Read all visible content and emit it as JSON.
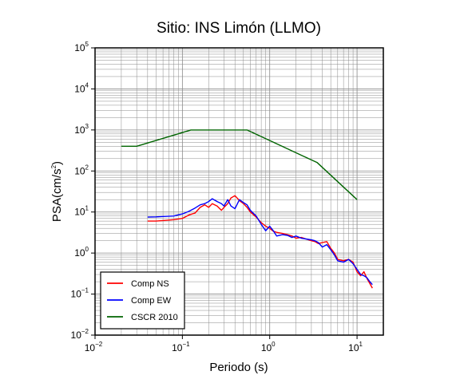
{
  "chart_data": {
    "type": "line",
    "title": "Sitio: INS Limón (LLMO)",
    "xlabel": "Periodo (s)",
    "ylabel_base": "PSA(cm/s",
    "ylabel_sup": "2",
    "ylabel_end": ")",
    "x_scale": "log",
    "y_scale": "log",
    "xlim": [
      0.01,
      20
    ],
    "ylim": [
      0.01,
      100000
    ],
    "grid": true,
    "legend_position": "bottom-left",
    "x_ticks": [
      {
        "base": "10",
        "exp": "−2",
        "value": 0.01
      },
      {
        "base": "10",
        "exp": "−1",
        "value": 0.1
      },
      {
        "base": "10",
        "exp": "0",
        "value": 1
      },
      {
        "base": "10",
        "exp": "1",
        "value": 10
      }
    ],
    "y_ticks": [
      {
        "base": "10",
        "exp": "−2",
        "value": 0.01
      },
      {
        "base": "10",
        "exp": "−1",
        "value": 0.1
      },
      {
        "base": "10",
        "exp": "0",
        "value": 1
      },
      {
        "base": "10",
        "exp": "1",
        "value": 10
      },
      {
        "base": "10",
        "exp": "2",
        "value": 100
      },
      {
        "base": "10",
        "exp": "3",
        "value": 1000
      },
      {
        "base": "10",
        "exp": "4",
        "value": 10000
      },
      {
        "base": "10",
        "exp": "5",
        "value": 100000
      }
    ],
    "series": [
      {
        "name": "Comp NS",
        "color": "#ff0000",
        "points": [
          [
            0.04,
            6.0
          ],
          [
            0.05,
            6.0
          ],
          [
            0.06,
            6.2
          ],
          [
            0.08,
            6.5
          ],
          [
            0.1,
            7.0
          ],
          [
            0.12,
            8.5
          ],
          [
            0.14,
            9.5
          ],
          [
            0.16,
            13.0
          ],
          [
            0.18,
            15.0
          ],
          [
            0.2,
            13.0
          ],
          [
            0.22,
            16.0
          ],
          [
            0.25,
            14.0
          ],
          [
            0.28,
            11.0
          ],
          [
            0.3,
            13.0
          ],
          [
            0.33,
            16.0
          ],
          [
            0.36,
            22.0
          ],
          [
            0.4,
            25.0
          ],
          [
            0.45,
            19.0
          ],
          [
            0.5,
            16.0
          ],
          [
            0.55,
            13.0
          ],
          [
            0.6,
            10.0
          ],
          [
            0.7,
            7.5
          ],
          [
            0.8,
            5.5
          ],
          [
            0.9,
            4.5
          ],
          [
            1.0,
            4.0
          ],
          [
            1.1,
            3.4
          ],
          [
            1.2,
            3.2
          ],
          [
            1.4,
            3.0
          ],
          [
            1.6,
            2.8
          ],
          [
            1.8,
            2.6
          ],
          [
            2.0,
            2.3
          ],
          [
            2.3,
            2.4
          ],
          [
            2.6,
            2.2
          ],
          [
            3.0,
            2.0
          ],
          [
            3.3,
            1.9
          ],
          [
            3.6,
            1.7
          ],
          [
            4.0,
            1.8
          ],
          [
            4.5,
            1.9
          ],
          [
            5.0,
            1.3
          ],
          [
            5.5,
            1.0
          ],
          [
            6.0,
            0.7
          ],
          [
            7.0,
            0.65
          ],
          [
            8.0,
            0.7
          ],
          [
            9.0,
            0.6
          ],
          [
            10.0,
            0.35
          ],
          [
            11.0,
            0.28
          ],
          [
            12.0,
            0.35
          ],
          [
            13.0,
            0.24
          ],
          [
            14.0,
            0.18
          ],
          [
            15.0,
            0.14
          ]
        ]
      },
      {
        "name": "Comp EW",
        "color": "#0000ff",
        "points": [
          [
            0.04,
            7.5
          ],
          [
            0.05,
            7.6
          ],
          [
            0.06,
            7.8
          ],
          [
            0.08,
            8.0
          ],
          [
            0.1,
            9.0
          ],
          [
            0.12,
            10.5
          ],
          [
            0.14,
            12.5
          ],
          [
            0.16,
            15.0
          ],
          [
            0.18,
            16.0
          ],
          [
            0.2,
            18.0
          ],
          [
            0.22,
            21.0
          ],
          [
            0.25,
            18.0
          ],
          [
            0.28,
            16.0
          ],
          [
            0.3,
            14.0
          ],
          [
            0.33,
            20.0
          ],
          [
            0.36,
            14.0
          ],
          [
            0.4,
            12.0
          ],
          [
            0.45,
            20.0
          ],
          [
            0.5,
            17.0
          ],
          [
            0.55,
            15.0
          ],
          [
            0.6,
            11.0
          ],
          [
            0.7,
            8.0
          ],
          [
            0.8,
            5.0
          ],
          [
            0.9,
            3.5
          ],
          [
            1.0,
            4.5
          ],
          [
            1.1,
            3.5
          ],
          [
            1.2,
            2.6
          ],
          [
            1.4,
            2.8
          ],
          [
            1.6,
            2.7
          ],
          [
            1.8,
            2.4
          ],
          [
            2.0,
            2.6
          ],
          [
            2.3,
            2.3
          ],
          [
            2.6,
            2.2
          ],
          [
            3.0,
            2.1
          ],
          [
            3.3,
            2.0
          ],
          [
            3.6,
            1.8
          ],
          [
            4.0,
            1.4
          ],
          [
            4.5,
            1.6
          ],
          [
            5.0,
            1.2
          ],
          [
            5.5,
            0.9
          ],
          [
            6.0,
            0.65
          ],
          [
            7.0,
            0.6
          ],
          [
            8.0,
            0.7
          ],
          [
            9.0,
            0.55
          ],
          [
            10.0,
            0.4
          ],
          [
            11.0,
            0.3
          ],
          [
            12.0,
            0.28
          ],
          [
            13.0,
            0.25
          ],
          [
            14.0,
            0.2
          ],
          [
            15.0,
            0.17
          ]
        ]
      },
      {
        "name": "CSCR 2010",
        "color": "#006400",
        "points": [
          [
            0.02,
            400
          ],
          [
            0.03,
            400
          ],
          [
            0.125,
            1000
          ],
          [
            0.55,
            1000
          ],
          [
            3.5,
            160
          ],
          [
            10.0,
            20
          ]
        ]
      }
    ]
  }
}
